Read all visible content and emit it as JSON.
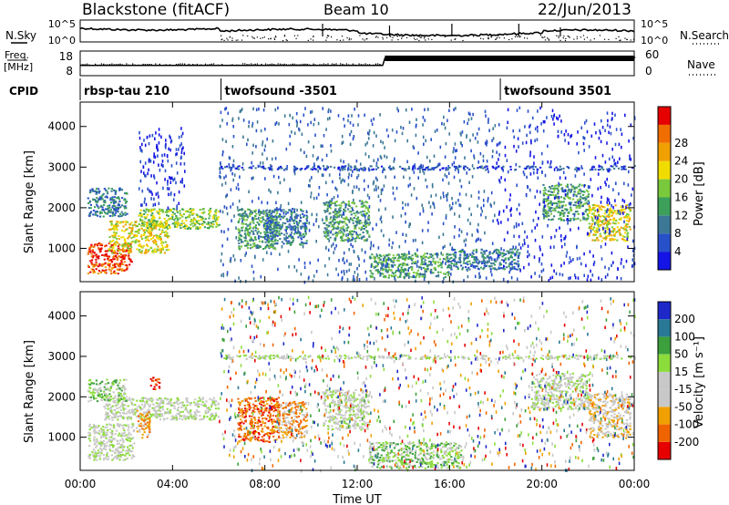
{
  "header": {
    "station": "Blackstone (fitACF)",
    "beam": "Beam 10",
    "date": "22/Jun/2013"
  },
  "labels": {
    "nsky": "N.Sky",
    "nsearch": "N.Search",
    "freq_top": "Freq.",
    "freq_bottom": "[MHz]",
    "nave": "Nave",
    "cpid": "CPID",
    "slant_range": "Slant Range [km]",
    "power": "Power [dB]",
    "velocity": "Velocity [m s⁻¹]",
    "time": "Time UT"
  },
  "colors": {
    "power_scale": [
      "#1414e6",
      "#2850c8",
      "#3c7896",
      "#3ca05a",
      "#7ac83c",
      "#f0dc00",
      "#f0a000",
      "#f06e00",
      "#e60000"
    ],
    "velocity_scale": [
      "#e60000",
      "#f06400",
      "#f0a000",
      "#c8c8c8",
      "#c8c8c8",
      "#8cdc3c",
      "#3ca03c",
      "#287896",
      "#1e28c8"
    ]
  },
  "chart_data": [
    {
      "type": "line",
      "panel": "noise",
      "left_ticks": [
        "10^5",
        "10^0"
      ],
      "right_ticks": [
        "10^5",
        "10^0"
      ],
      "x": [
        "00:00",
        "04:00",
        "08:00",
        "12:00",
        "16:00",
        "20:00",
        "00:00"
      ]
    },
    {
      "type": "line",
      "panel": "freq-nave",
      "left_ticks": [
        "18",
        "8"
      ],
      "right_ticks": [
        "60",
        "0"
      ],
      "freq_mhz": [
        {
          "t": 0,
          "v": 11
        },
        {
          "t": 13.1,
          "v": 11
        },
        {
          "t": 13.2,
          "v": 14.5
        },
        {
          "t": 24,
          "v": 14.5
        }
      ],
      "nave_segments": [
        {
          "from": 0,
          "to": 13.1,
          "v": 27
        },
        {
          "from": 13.2,
          "to": 24,
          "v": 45
        }
      ]
    },
    {
      "type": "table",
      "panel": "cpid",
      "entries": [
        {
          "start": 0,
          "label": "rbsp-tau 210"
        },
        {
          "start": 6.1,
          "label": "twofsound -3501"
        },
        {
          "start": 18.2,
          "label": "twofsound 3501"
        }
      ]
    },
    {
      "type": "heatmap",
      "panel": "power",
      "xlabel": "",
      "ylabel": "Slant Range [km]",
      "ylim": [
        180,
        4600
      ],
      "yticks": [
        1000,
        2000,
        3000,
        4000
      ],
      "colorbar_ticks": [
        4,
        8,
        12,
        16,
        20,
        24,
        28
      ],
      "colorbar_label": "Power [dB]",
      "regions": [
        {
          "t": [
            0.3,
            2.2
          ],
          "r": [
            600,
            1150
          ],
          "level": 8
        },
        {
          "t": [
            0.3,
            2.0
          ],
          "r": [
            400,
            650
          ],
          "level": 7
        },
        {
          "t": [
            1.2,
            3.8
          ],
          "r": [
            900,
            1700
          ],
          "level": 5
        },
        {
          "t": [
            2.5,
            6.0
          ],
          "r": [
            1500,
            2000
          ],
          "level": 4
        },
        {
          "t": [
            0.3,
            2.0
          ],
          "r": [
            1800,
            2500
          ],
          "level": 2
        },
        {
          "t": [
            6.8,
            8.5
          ],
          "r": [
            1000,
            2000
          ],
          "level": 3
        },
        {
          "t": [
            8.0,
            9.8
          ],
          "r": [
            1100,
            2000
          ],
          "level": 2
        },
        {
          "t": [
            10.5,
            12.5
          ],
          "r": [
            1200,
            2200
          ],
          "level": 3
        },
        {
          "t": [
            12.5,
            16.0
          ],
          "r": [
            300,
            900
          ],
          "level": 3
        },
        {
          "t": [
            16.0,
            19.0
          ],
          "r": [
            500,
            1000
          ],
          "level": 2
        },
        {
          "t": [
            20.0,
            22.0
          ],
          "r": [
            1700,
            2600
          ],
          "level": 3
        },
        {
          "t": [
            22.0,
            23.8
          ],
          "r": [
            1200,
            2100
          ],
          "level": 5
        },
        {
          "t": [
            6.0,
            24.0
          ],
          "r": [
            2950,
            3050
          ],
          "level": 1
        }
      ],
      "scatter_regions": [
        {
          "t": [
            6.0,
            18.0
          ],
          "r": [
            200,
            4500
          ],
          "level": 1
        },
        {
          "t": [
            18.0,
            24.0
          ],
          "r": [
            200,
            4500
          ],
          "level": 0
        },
        {
          "t": [
            2.5,
            4.5
          ],
          "r": [
            2000,
            4000
          ],
          "level": 0
        }
      ]
    },
    {
      "type": "heatmap",
      "panel": "velocity",
      "xlabel": "Time UT",
      "ylabel": "Slant Range [km]",
      "ylim": [
        180,
        4600
      ],
      "yticks": [
        1000,
        2000,
        3000,
        4000
      ],
      "xticks": [
        "00:00",
        "04:00",
        "08:00",
        "12:00",
        "16:00",
        "20:00",
        "00:00"
      ],
      "colorbar_ticks": [
        -200,
        -100,
        -50,
        -15,
        15,
        50,
        100,
        200
      ],
      "colorbar_label": "Velocity [m s⁻¹]",
      "regions": [
        {
          "t": [
            0.3,
            2.3
          ],
          "r": [
            450,
            1350
          ],
          "level": 4
        },
        {
          "t": [
            1.0,
            6.0
          ],
          "r": [
            1450,
            2000
          ],
          "level": 4
        },
        {
          "t": [
            0.3,
            2.0
          ],
          "r": [
            1900,
            2450
          ],
          "level": 5
        },
        {
          "t": [
            2.4,
            3.0
          ],
          "r": [
            1000,
            1700
          ],
          "level": 2
        },
        {
          "t": [
            3.0,
            3.4
          ],
          "r": [
            2200,
            2500
          ],
          "level": 0
        },
        {
          "t": [
            6.8,
            8.6
          ],
          "r": [
            900,
            2000
          ],
          "level": 1
        },
        {
          "t": [
            8.5,
            9.8
          ],
          "r": [
            1000,
            1900
          ],
          "level": 2
        },
        {
          "t": [
            10.5,
            12.5
          ],
          "r": [
            1200,
            2200
          ],
          "level": 4
        },
        {
          "t": [
            12.5,
            16.5
          ],
          "r": [
            250,
            900
          ],
          "level": 5
        },
        {
          "t": [
            19.5,
            22.0
          ],
          "r": [
            1700,
            2600
          ],
          "level": 4
        },
        {
          "t": [
            22.0,
            23.8
          ],
          "r": [
            1000,
            2100
          ],
          "level": 3
        },
        {
          "t": [
            6.0,
            24.0
          ],
          "r": [
            2950,
            3050
          ],
          "level": 4
        }
      ],
      "scatter_regions": [
        {
          "t": [
            6.0,
            18.0
          ],
          "r": [
            200,
            4500
          ],
          "level": -1
        },
        {
          "t": [
            18.0,
            24.0
          ],
          "r": [
            200,
            4500
          ],
          "level": -1
        }
      ]
    }
  ]
}
